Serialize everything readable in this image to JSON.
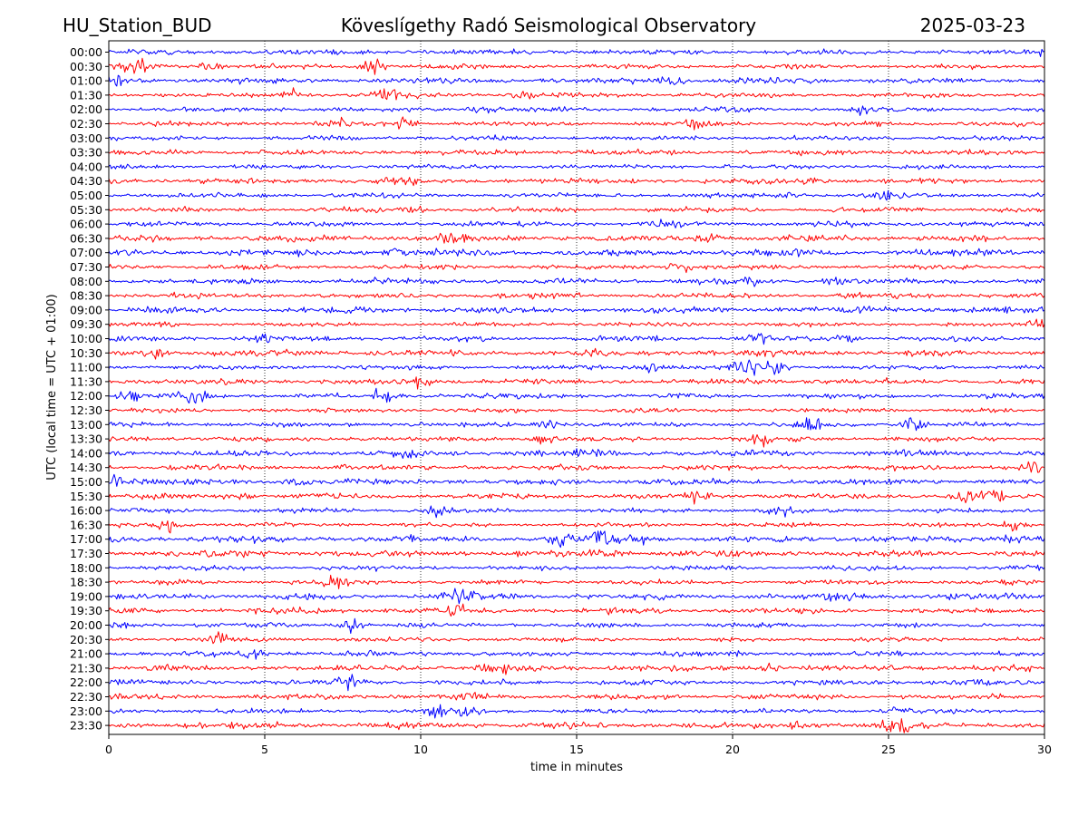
{
  "header": {
    "station": "HU_Station_BUD",
    "observatory": "Köveslígethy Radó Seismological Observatory",
    "date": "2025-03-23"
  },
  "chart_data": {
    "type": "line",
    "title": "Köveslígethy Radó Seismological Observatory",
    "xlabel": "time in minutes",
    "ylabel": "UTC (local time = UTC + 01:00)",
    "xlim": [
      0,
      30
    ],
    "x_ticks": [
      "0",
      "5",
      "10",
      "15",
      "20",
      "25",
      "30"
    ],
    "x_tick_values": [
      0,
      5,
      10,
      15,
      20,
      25,
      30
    ],
    "grid": "vertical dotted lines at x ticks",
    "row_labels": [
      "00:00",
      "00:30",
      "01:00",
      "01:30",
      "02:00",
      "02:30",
      "03:00",
      "03:30",
      "04:00",
      "04:30",
      "05:00",
      "05:30",
      "06:00",
      "06:30",
      "07:00",
      "07:30",
      "08:00",
      "08:30",
      "09:00",
      "09:30",
      "10:00",
      "10:30",
      "11:00",
      "11:30",
      "12:00",
      "12:30",
      "13:00",
      "13:30",
      "14:00",
      "14:30",
      "15:00",
      "15:30",
      "16:00",
      "16:30",
      "17:00",
      "17:30",
      "18:00",
      "18:30",
      "19:00",
      "19:30",
      "20:00",
      "20:30",
      "21:00",
      "21:30",
      "22:00",
      "22:30",
      "23:00",
      "23:30"
    ],
    "trace_colors": [
      "#0000ff",
      "#ff0000"
    ],
    "events": [
      {
        "row": "00:00",
        "minute": 30,
        "strength": 0.6
      },
      {
        "row": "00:30",
        "minute": 0.9,
        "strength": 1.2
      },
      {
        "row": "00:30",
        "minute": 3.3,
        "strength": 0.6
      },
      {
        "row": "00:30",
        "minute": 8.5,
        "strength": 1.3
      },
      {
        "row": "01:00",
        "minute": 0.2,
        "strength": 0.6
      },
      {
        "row": "01:00",
        "minute": 18,
        "strength": 0.5
      },
      {
        "row": "01:30",
        "minute": 5.8,
        "strength": 0.7
      },
      {
        "row": "01:30",
        "minute": 9,
        "strength": 1.0
      },
      {
        "row": "01:30",
        "minute": 13.2,
        "strength": 0.6
      },
      {
        "row": "02:00",
        "minute": 11.9,
        "strength": 0.6
      },
      {
        "row": "02:00",
        "minute": 24.3,
        "strength": 0.6
      },
      {
        "row": "02:30",
        "minute": 7.2,
        "strength": 0.5
      },
      {
        "row": "02:30",
        "minute": 9.5,
        "strength": 0.8
      },
      {
        "row": "02:30",
        "minute": 18.8,
        "strength": 0.6
      },
      {
        "row": "04:30",
        "minute": 9.3,
        "strength": 0.6
      },
      {
        "row": "04:30",
        "minute": 22.5,
        "strength": 0.5
      },
      {
        "row": "05:00",
        "minute": 25,
        "strength": 0.6
      },
      {
        "row": "05:00",
        "minute": 22,
        "strength": 0.5
      },
      {
        "row": "05:30",
        "minute": 9.7,
        "strength": 0.6
      },
      {
        "row": "06:00",
        "minute": 17.9,
        "strength": 0.5
      },
      {
        "row": "06:30",
        "minute": 10.8,
        "strength": 0.5
      },
      {
        "row": "06:30",
        "minute": 19.3,
        "strength": 0.7
      },
      {
        "row": "07:00",
        "minute": 9.2,
        "strength": 0.5
      },
      {
        "row": "07:30",
        "minute": 18.3,
        "strength": 0.7
      },
      {
        "row": "08:00",
        "minute": 20.5,
        "strength": 0.6
      },
      {
        "row": "08:00",
        "minute": 23.2,
        "strength": 0.6
      },
      {
        "row": "09:30",
        "minute": 29.8,
        "strength": 0.6
      },
      {
        "row": "10:00",
        "minute": 5,
        "strength": 0.5
      },
      {
        "row": "10:00",
        "minute": 20.8,
        "strength": 0.7
      },
      {
        "row": "10:00",
        "minute": 23.5,
        "strength": 0.6
      },
      {
        "row": "10:30",
        "minute": 1.5,
        "strength": 0.6
      },
      {
        "row": "11:00",
        "minute": 17.5,
        "strength": 0.9
      },
      {
        "row": "11:00",
        "minute": 20.5,
        "strength": 1.2
      },
      {
        "row": "11:00",
        "minute": 21.5,
        "strength": 0.9
      },
      {
        "row": "11:30",
        "minute": 10,
        "strength": 0.6
      },
      {
        "row": "12:00",
        "minute": 0.7,
        "strength": 0.7
      },
      {
        "row": "12:00",
        "minute": 2.7,
        "strength": 1.1
      },
      {
        "row": "12:00",
        "minute": 8.8,
        "strength": 0.8
      },
      {
        "row": "13:00",
        "minute": 14,
        "strength": 0.7
      },
      {
        "row": "13:00",
        "minute": 22.5,
        "strength": 0.8
      },
      {
        "row": "13:00",
        "minute": 25.8,
        "strength": 0.8
      },
      {
        "row": "13:30",
        "minute": 14,
        "strength": 0.6
      },
      {
        "row": "13:30",
        "minute": 21,
        "strength": 0.8
      },
      {
        "row": "14:00",
        "minute": 9.5,
        "strength": 0.6
      },
      {
        "row": "14:00",
        "minute": 15,
        "strength": 0.5
      },
      {
        "row": "14:30",
        "minute": 29.5,
        "strength": 0.8
      },
      {
        "row": "15:00",
        "minute": 0.4,
        "strength": 1.0
      },
      {
        "row": "15:00",
        "minute": 6,
        "strength": 0.5
      },
      {
        "row": "15:30",
        "minute": 4.2,
        "strength": 0.5
      },
      {
        "row": "15:30",
        "minute": 18.9,
        "strength": 0.9
      },
      {
        "row": "15:30",
        "minute": 27.5,
        "strength": 1.0
      },
      {
        "row": "15:30",
        "minute": 28.3,
        "strength": 0.9
      },
      {
        "row": "16:00",
        "minute": 10.5,
        "strength": 0.6
      },
      {
        "row": "16:00",
        "minute": 21.6,
        "strength": 0.6
      },
      {
        "row": "16:30",
        "minute": 1.9,
        "strength": 1.1
      },
      {
        "row": "16:30",
        "minute": 29.1,
        "strength": 0.7
      },
      {
        "row": "17:00",
        "minute": 14.5,
        "strength": 0.7
      },
      {
        "row": "17:00",
        "minute": 15.8,
        "strength": 1.4
      },
      {
        "row": "17:00",
        "minute": 17,
        "strength": 0.6
      },
      {
        "row": "17:00",
        "minute": 29,
        "strength": 0.7
      },
      {
        "row": "17:30",
        "minute": 16,
        "strength": 0.6
      },
      {
        "row": "18:30",
        "minute": 7.2,
        "strength": 0.5
      },
      {
        "row": "19:00",
        "minute": 11.1,
        "strength": 1.2
      },
      {
        "row": "19:00",
        "minute": 23.5,
        "strength": 0.6
      },
      {
        "row": "19:30",
        "minute": 11.2,
        "strength": 0.6
      },
      {
        "row": "20:00",
        "minute": 7.8,
        "strength": 0.8
      },
      {
        "row": "20:00",
        "minute": 0.2,
        "strength": 0.5
      },
      {
        "row": "20:30",
        "minute": 3.5,
        "strength": 0.7
      },
      {
        "row": "21:00",
        "minute": 4.7,
        "strength": 0.5
      },
      {
        "row": "21:30",
        "minute": 12.4,
        "strength": 0.6
      },
      {
        "row": "21:30",
        "minute": 21.2,
        "strength": 0.5
      },
      {
        "row": "22:00",
        "minute": 7.8,
        "strength": 1.0
      },
      {
        "row": "22:30",
        "minute": 11.5,
        "strength": 0.6
      },
      {
        "row": "23:00",
        "minute": 10.5,
        "strength": 0.8
      },
      {
        "row": "23:00",
        "minute": 11.6,
        "strength": 0.7
      },
      {
        "row": "23:00",
        "minute": 25.2,
        "strength": 0.6
      },
      {
        "row": "23:30",
        "minute": 25.2,
        "strength": 1.1
      },
      {
        "row": "23:30",
        "minute": 22,
        "strength": 0.6
      }
    ]
  }
}
